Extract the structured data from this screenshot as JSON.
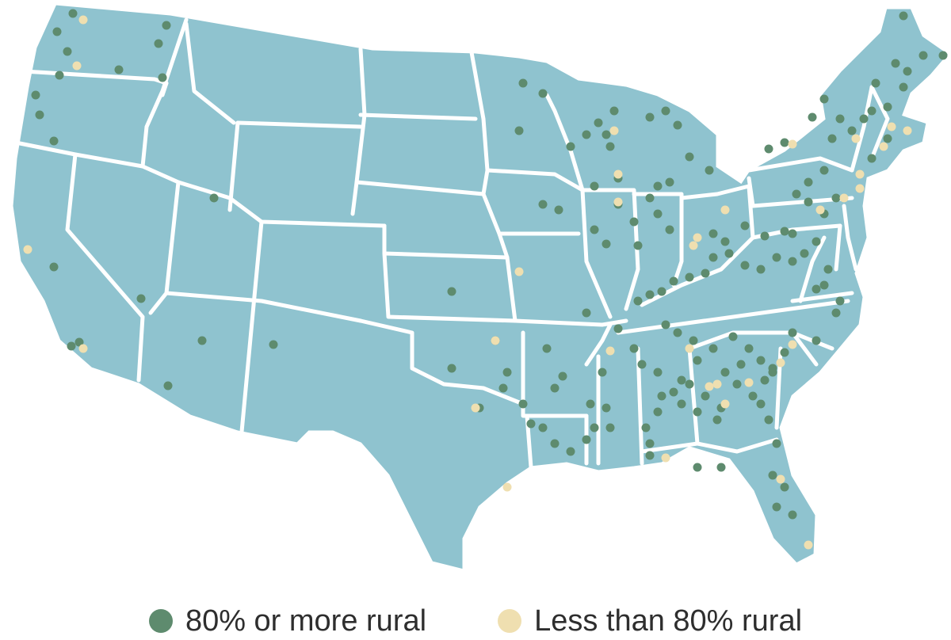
{
  "map": {
    "region": "contiguous-united-states",
    "state_fill": "#8fc3cf",
    "border_color": "#ffffff"
  },
  "legend": [
    {
      "label": "80% or more rural",
      "color": "#5e8b6e"
    },
    {
      "label": "Less than 80% rural",
      "color": "#efdfb0"
    }
  ]
}
